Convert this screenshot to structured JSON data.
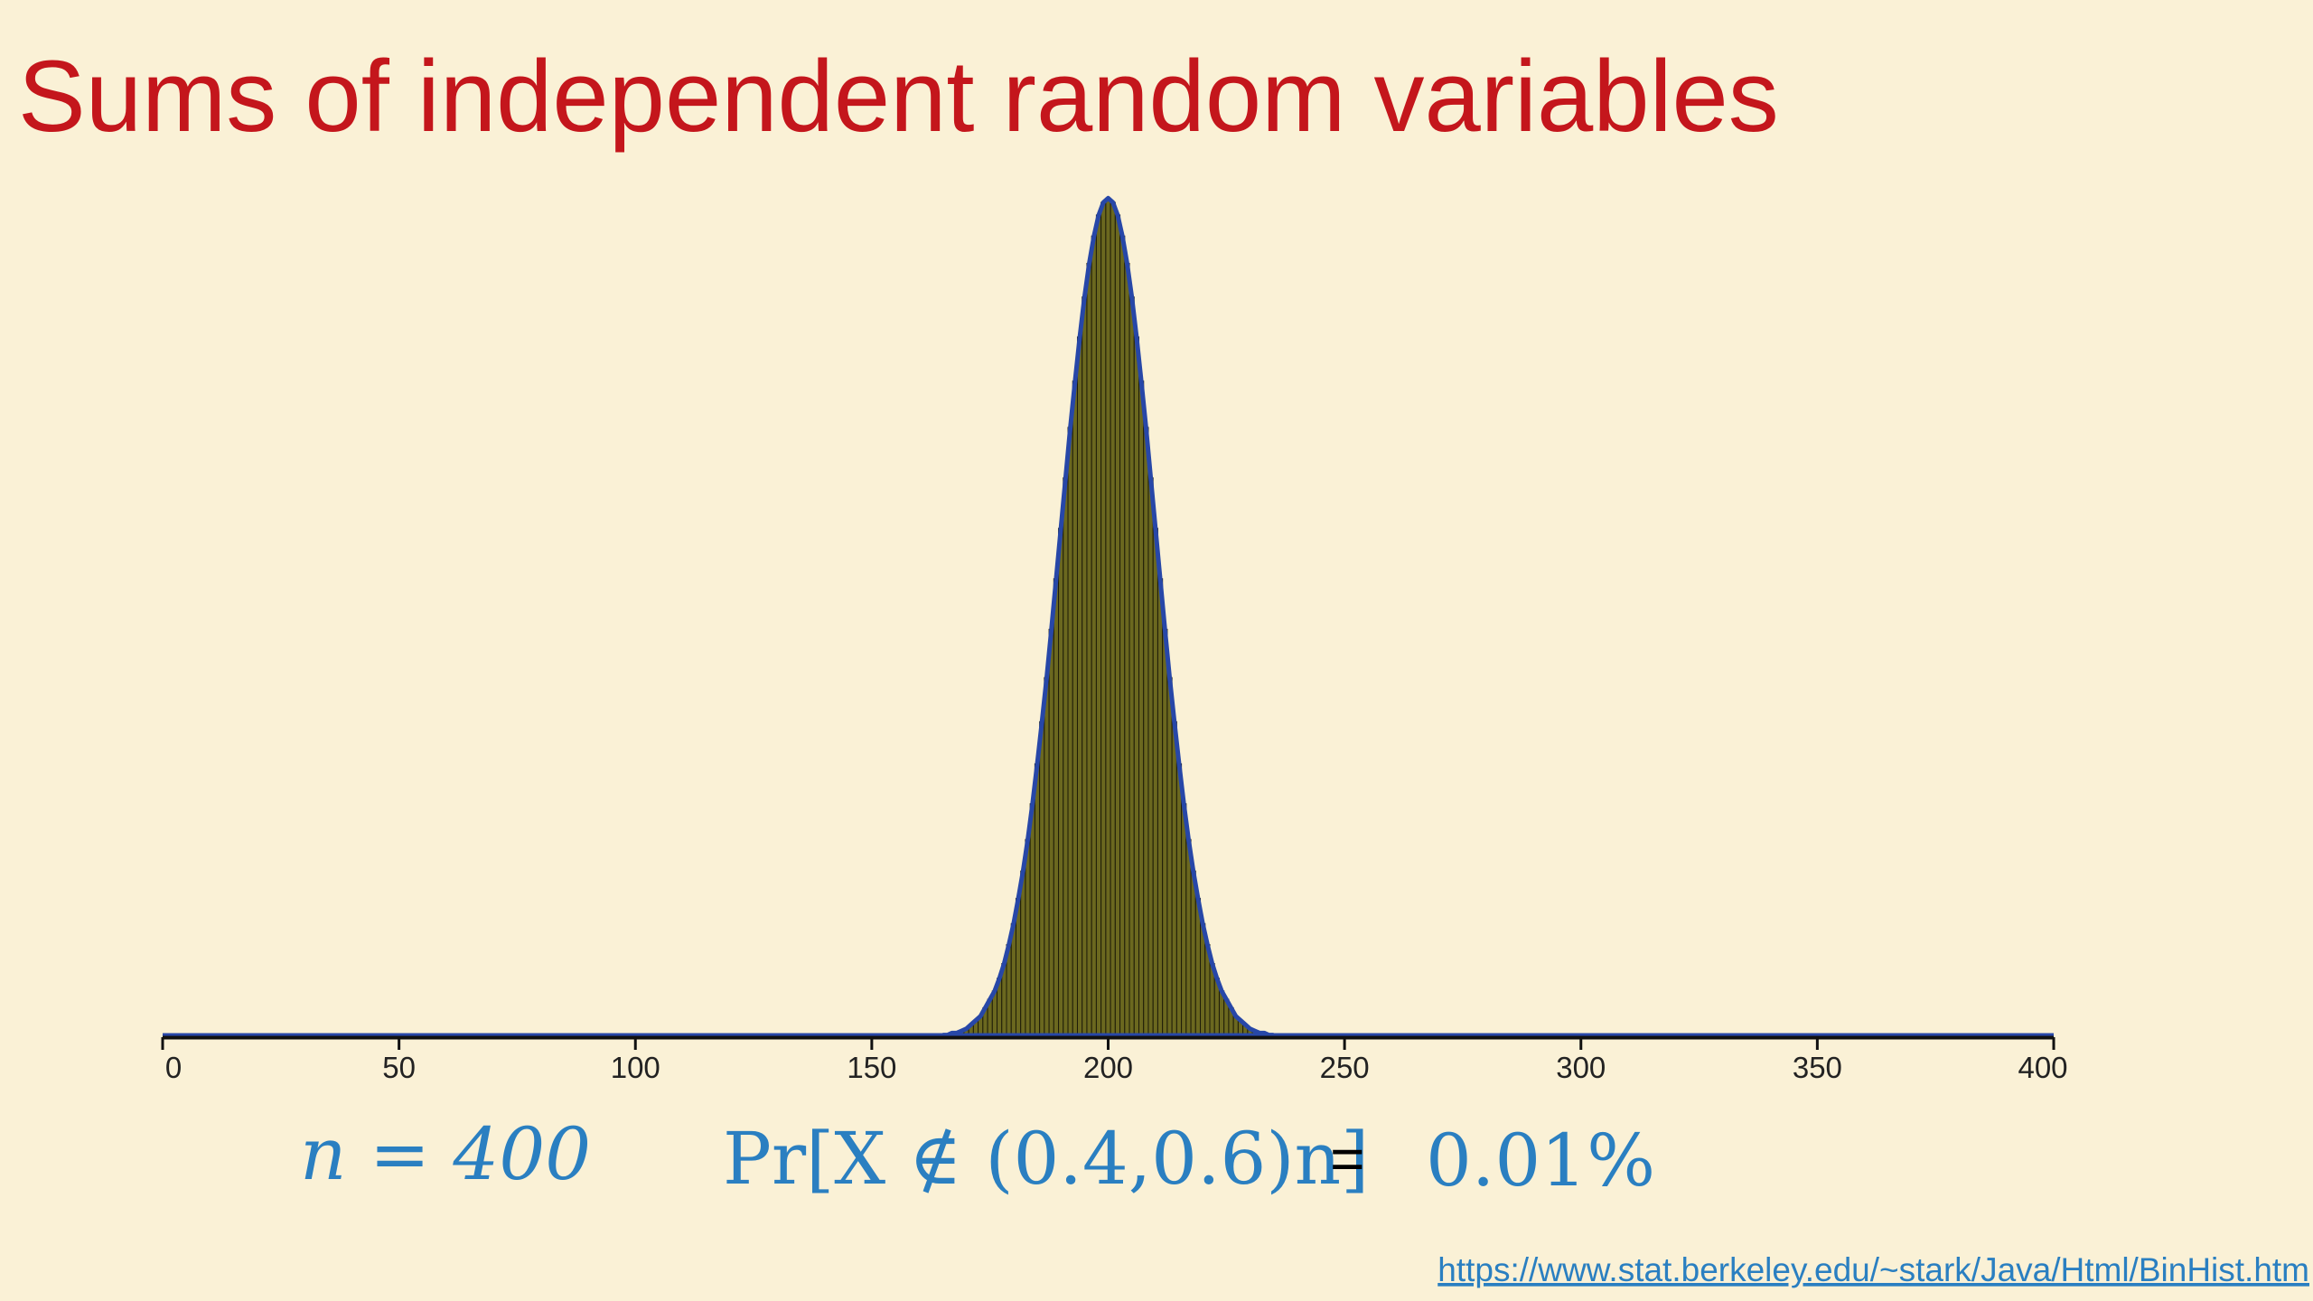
{
  "title": "Sums of independent random variables",
  "chart_data": {
    "type": "histogram",
    "x": [
      165,
      166,
      167,
      168,
      169,
      170,
      171,
      172,
      173,
      174,
      175,
      176,
      177,
      178,
      179,
      180,
      181,
      182,
      183,
      184,
      185,
      186,
      187,
      188,
      189,
      190,
      191,
      192,
      193,
      194,
      195,
      196,
      197,
      198,
      199,
      200,
      201,
      202,
      203,
      204,
      205,
      206,
      207,
      208,
      209,
      210,
      211,
      212,
      213,
      214,
      215,
      216,
      217,
      218,
      219,
      220,
      221,
      222,
      223,
      224,
      225,
      226,
      227,
      228,
      229,
      230,
      231,
      232,
      233,
      234,
      235
    ],
    "values": [
      0.0001,
      0.0001,
      0.0002,
      0.0002,
      0.0003,
      0.0004,
      0.0006,
      0.0008,
      0.001,
      0.0014,
      0.0018,
      0.0022,
      0.0028,
      0.0035,
      0.0044,
      0.0054,
      0.0066,
      0.0079,
      0.0094,
      0.0111,
      0.013,
      0.015,
      0.0171,
      0.0194,
      0.0218,
      0.0242,
      0.0266,
      0.029,
      0.0312,
      0.0333,
      0.0352,
      0.0368,
      0.0381,
      0.0391,
      0.0397,
      0.0399,
      0.0397,
      0.0391,
      0.0381,
      0.0368,
      0.0352,
      0.0333,
      0.0312,
      0.029,
      0.0266,
      0.0242,
      0.0218,
      0.0194,
      0.0171,
      0.015,
      0.013,
      0.0111,
      0.0094,
      0.0079,
      0.0066,
      0.0054,
      0.0044,
      0.0035,
      0.0028,
      0.0022,
      0.0018,
      0.0014,
      0.001,
      0.0008,
      0.0006,
      0.0004,
      0.0003,
      0.0002,
      0.0002,
      0.0001,
      0.0001
    ],
    "color": "#6b681f",
    "outline_color": "#2747a8",
    "xlim": [
      0,
      400
    ],
    "xticks": [
      0,
      50,
      100,
      150,
      200,
      250,
      300,
      350,
      400
    ],
    "ylim": [
      0,
      0.04
    ]
  },
  "annotations": [
    "n = 400",
    "Pr[X ∉ (0.4,0.6)n]",
    "=",
    "0.01%"
  ],
  "source": "https://www.stat.berkeley.edu/~stark/Java/Html/BinHist.htm"
}
